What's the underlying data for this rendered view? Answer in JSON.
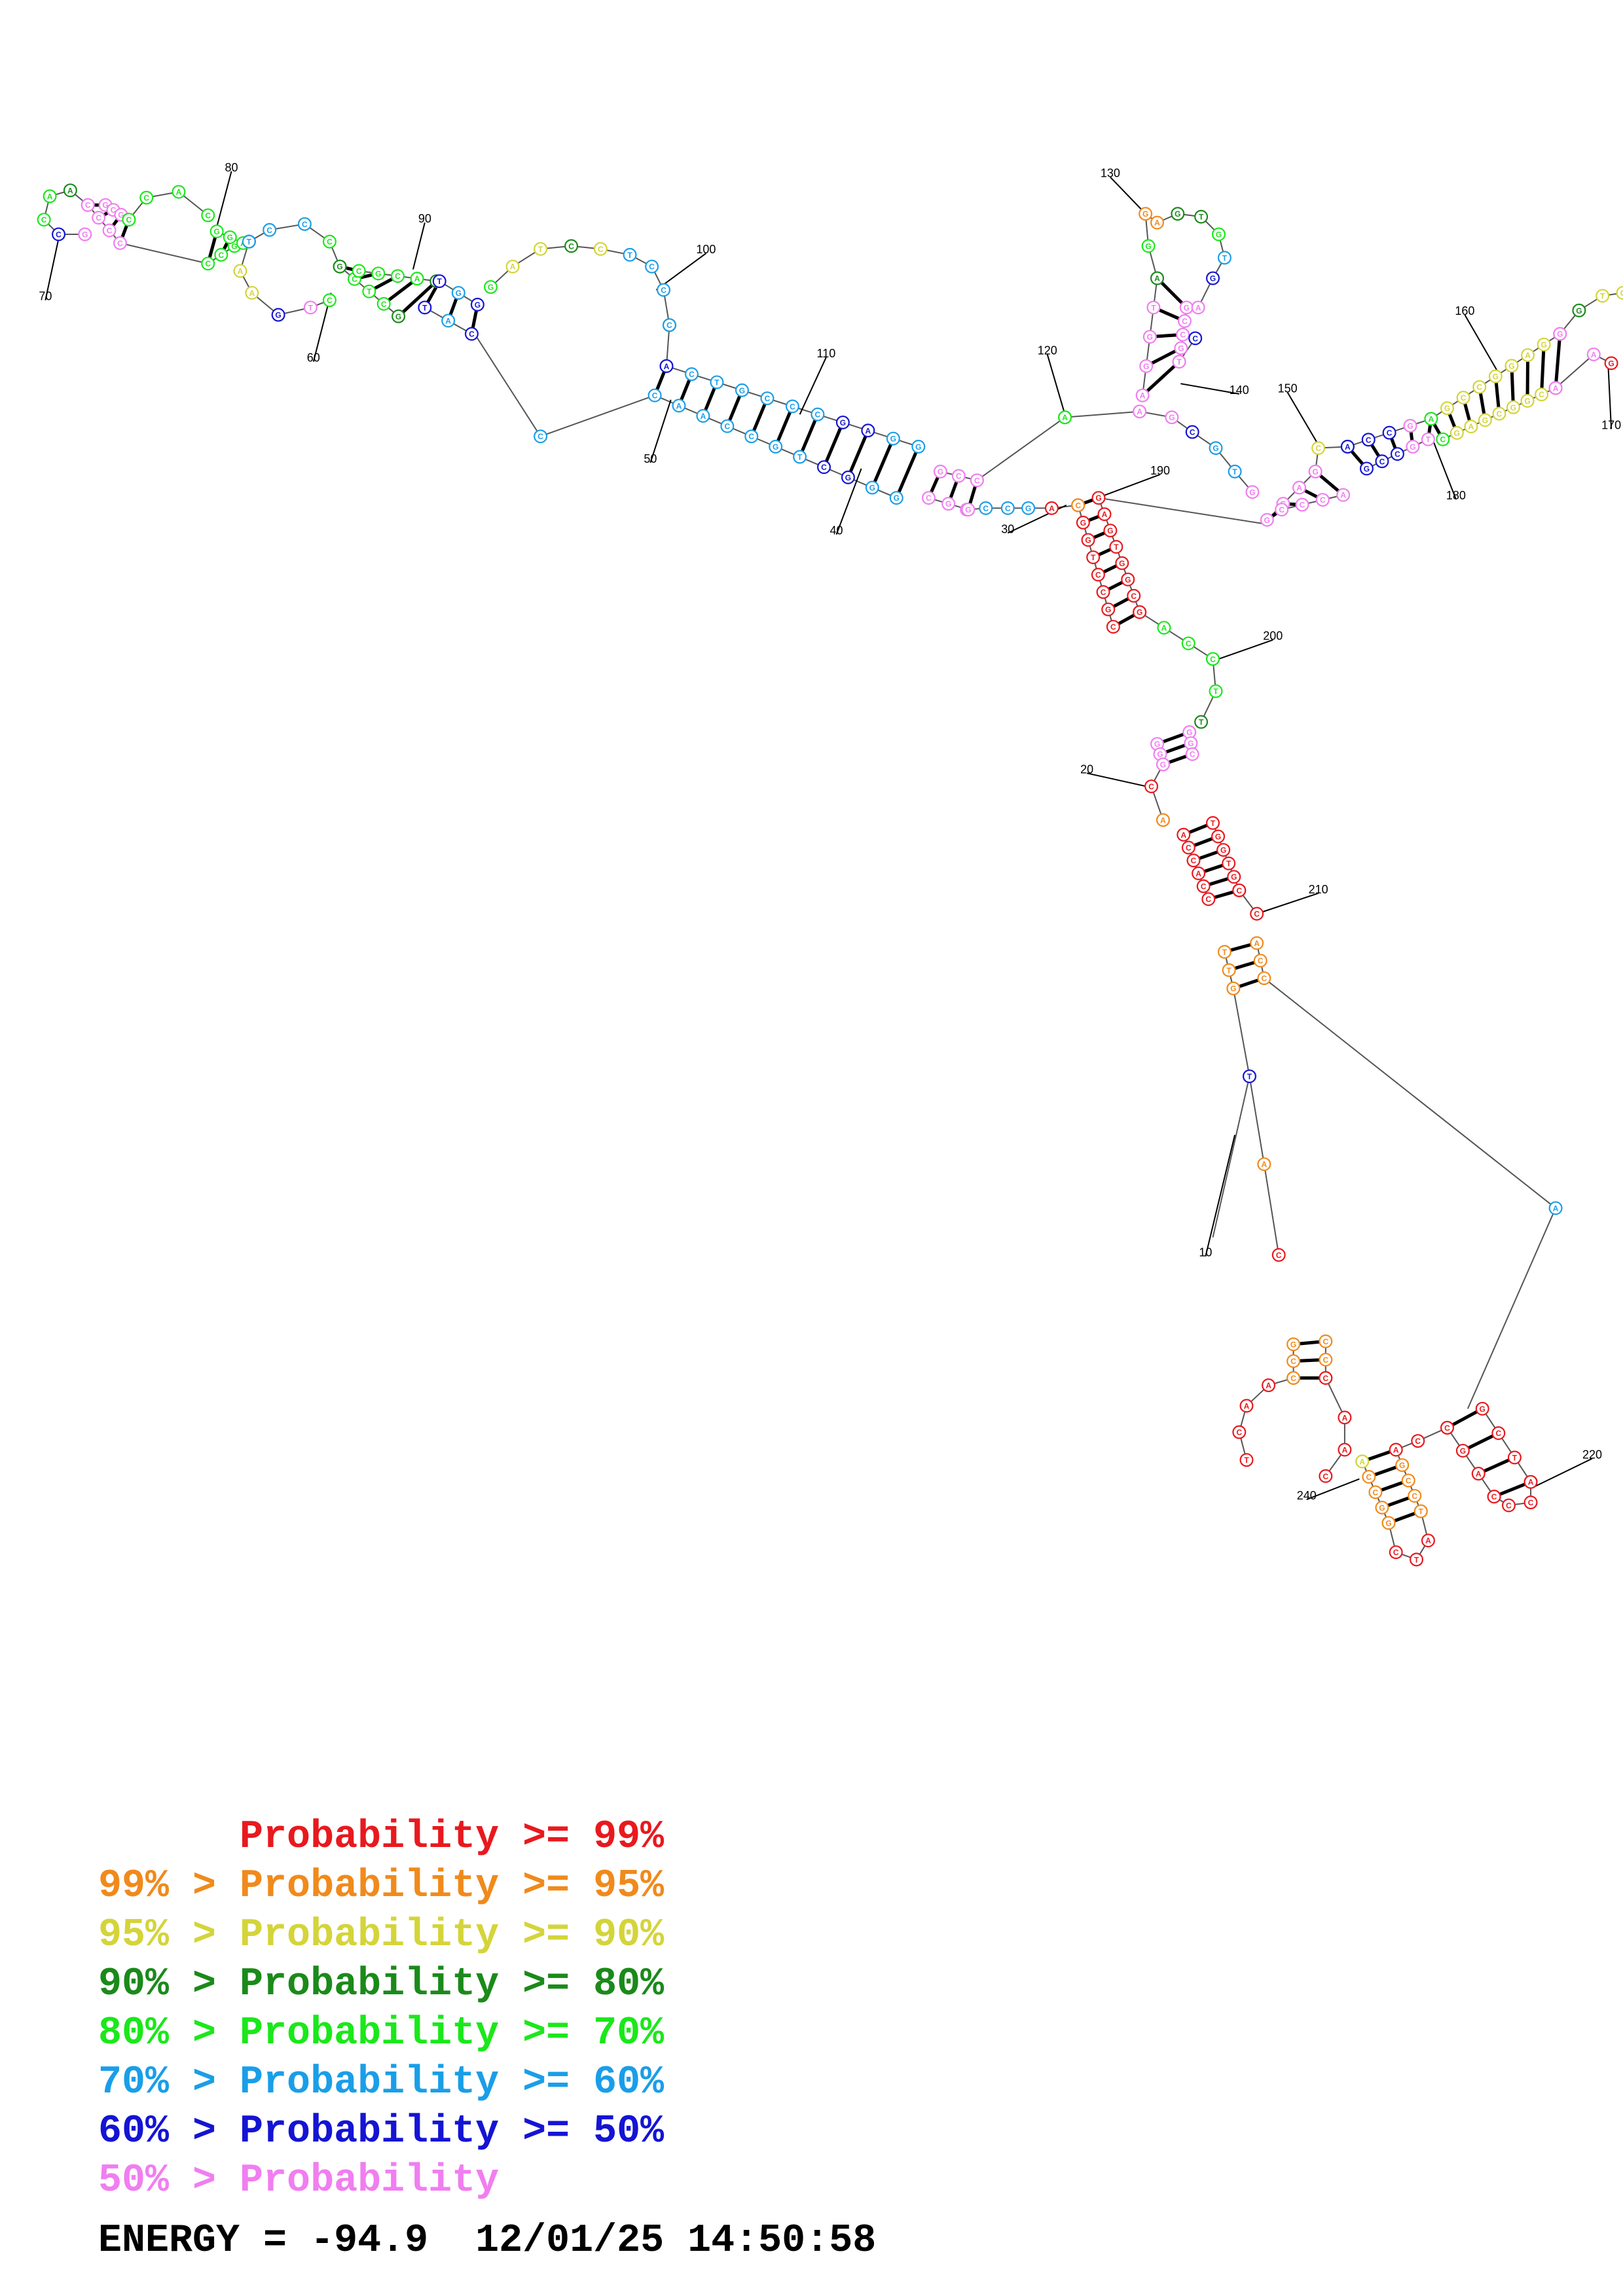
{
  "legend": {
    "rows": [
      {
        "prefix": "",
        "label": "Probability >= 99%",
        "color": "#e8191e"
      },
      {
        "prefix": "99% > ",
        "label": "Probability >= 95%",
        "color": "#f08a1c"
      },
      {
        "prefix": "95% > ",
        "label": "Probability >= 90%",
        "color": "#d4d43a"
      },
      {
        "prefix": "90% > ",
        "label": "Probability >= 80%",
        "color": "#1a8a1a"
      },
      {
        "prefix": "80% > ",
        "label": "Probability >= 70%",
        "color": "#1ae81a"
      },
      {
        "prefix": "70% > ",
        "label": "Probability >= 60%",
        "color": "#1a9ee8"
      },
      {
        "prefix": "60% > ",
        "label": "Probability >= 50%",
        "color": "#1414d4"
      },
      {
        "prefix": "50% > ",
        "label": "Probability",
        "color": "#f07ef0"
      }
    ]
  },
  "energy": {
    "label": "ENERGY = ",
    "value": "-94.9",
    "timestamp": "12/01/25 14:50:58"
  },
  "diagram": {
    "position_labels": [
      "10",
      "20",
      "30",
      "40",
      "50",
      "60",
      "70",
      "80",
      "90",
      "100",
      "110",
      "120",
      "130",
      "140",
      "150",
      "160",
      "170",
      "180",
      "190",
      "200",
      "210",
      "220",
      "240"
    ],
    "bases_left_arm": "CAACCGTCGGGCCTGCCCGAGGAAGGCGCCGTTGGCCCGGTAC",
    "bases_top": "GCGCACCGGAGCCGGCCTTGAGCACGTCCCAGCGCTGAC",
    "bases_branch_mid": "AGGTGCGCCGCCGAGTTCAGC",
    "bases_right_arm": "ACCGTGCCGTAGCCGGAGCCGAGCGGCCGTC",
    "bases_trunk": "CGGTCCGCGAGTGGCACTTGCGGCCAACGCTGCGGCTTGTCGC",
    "bases_bottom": "ATACCGGCCACCTCGGCTCGACCATAGGCCGGCCTACAAACT"
  }
}
